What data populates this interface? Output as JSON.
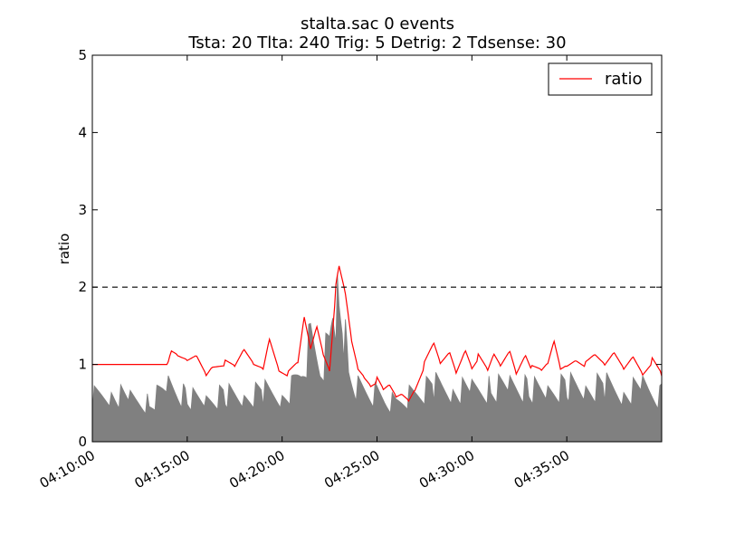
{
  "chart_data": {
    "type": "line",
    "title": "stalta.sac   0 events",
    "subtitle": "Tsta: 20  Tlta: 240  Trig: 5  Detrig: 2  Tdsense: 30",
    "xlabel": "",
    "ylabel": "ratio",
    "xlim": [
      "04:10:00",
      "04:40:00"
    ],
    "ylim": [
      0,
      5
    ],
    "yticks": [
      "0",
      "1",
      "2",
      "3",
      "4",
      "5"
    ],
    "xticks": [
      "04:10:00",
      "04:15:00",
      "04:20:00",
      "04:25:00",
      "04:30:00",
      "04:35:00"
    ],
    "threshold": {
      "value": 2,
      "style": "dashed",
      "color": "#000000"
    },
    "grid": false,
    "legend": {
      "placement": "top-right",
      "entries": [
        "ratio"
      ]
    },
    "colors": {
      "ratio": "#ff0000",
      "envelope": "#808080"
    },
    "series": [
      {
        "name": "ratio",
        "color": "#ff0000",
        "x": [
          "04:10:00",
          "04:14:00",
          "04:14:10",
          "04:14:30",
          "04:15:00",
          "04:15:30",
          "04:16:00",
          "04:16:20",
          "04:17:00",
          "04:17:30",
          "04:18:00",
          "04:18:30",
          "04:19:00",
          "04:19:20",
          "04:19:50",
          "04:20:20",
          "04:20:50",
          "04:21:10",
          "04:21:30",
          "04:21:50",
          "04:22:10",
          "04:22:30",
          "04:22:50",
          "04:23:00",
          "04:23:20",
          "04:23:40",
          "04:24:00",
          "04:24:20",
          "04:24:40",
          "04:25:00",
          "04:25:20",
          "04:25:40",
          "04:26:00",
          "04:26:20",
          "04:26:40",
          "04:27:00",
          "04:27:30",
          "04:28:00",
          "04:28:20",
          "04:28:50",
          "04:29:10",
          "04:29:40",
          "04:30:00",
          "04:30:20",
          "04:30:50",
          "04:31:10",
          "04:31:30",
          "04:32:00",
          "04:32:20",
          "04:32:50",
          "04:33:10",
          "04:33:40",
          "04:34:00",
          "04:34:20",
          "04:34:40",
          "04:35:00",
          "04:35:30",
          "04:36:00",
          "04:36:30",
          "04:37:00",
          "04:37:30",
          "04:38:00",
          "04:38:30",
          "04:39:00",
          "04:39:30",
          "04:40:00"
        ],
        "values": [
          1.0,
          1.0,
          1.15,
          1.1,
          1.05,
          1.12,
          0.88,
          1.0,
          1.02,
          0.95,
          1.18,
          1.0,
          0.95,
          1.35,
          0.95,
          0.88,
          1.0,
          1.6,
          1.2,
          1.5,
          1.15,
          0.95,
          2.0,
          2.25,
          1.9,
          1.3,
          0.95,
          0.85,
          0.75,
          0.8,
          0.65,
          0.72,
          0.58,
          0.62,
          0.55,
          0.7,
          1.0,
          1.25,
          1.0,
          1.15,
          0.9,
          1.2,
          0.98,
          1.1,
          0.9,
          1.12,
          0.98,
          1.18,
          0.9,
          1.15,
          0.95,
          0.9,
          1.0,
          1.3,
          0.95,
          1.0,
          1.08,
          1.0,
          1.1,
          0.98,
          1.15,
          0.95,
          1.12,
          0.9,
          1.05,
          0.85
        ]
      }
    ],
    "envelope": {
      "name": "",
      "color": "#808080",
      "x": [
        "04:10:00",
        "04:11:00",
        "04:12:00",
        "04:13:00",
        "04:14:00",
        "04:15:00",
        "04:16:00",
        "04:17:00",
        "04:18:00",
        "04:19:00",
        "04:20:00",
        "04:20:30",
        "04:21:00",
        "04:21:30",
        "04:22:00",
        "04:22:30",
        "04:22:45",
        "04:23:00",
        "04:23:15",
        "04:23:30",
        "04:24:00",
        "04:24:30",
        "04:25:00",
        "04:25:30",
        "04:26:00",
        "04:26:30",
        "04:27:00",
        "04:28:00",
        "04:29:00",
        "04:30:00",
        "04:31:00",
        "04:32:00",
        "04:33:00",
        "04:34:00",
        "04:35:00",
        "04:36:00",
        "04:37:00",
        "04:38:00",
        "04:39:00",
        "04:40:00"
      ],
      "values": [
        0.75,
        0.85,
        0.7,
        0.65,
        0.95,
        0.75,
        0.7,
        0.8,
        0.75,
        0.85,
        0.8,
        0.9,
        1.2,
        1.7,
        1.3,
        1.6,
        2.4,
        2.2,
        1.9,
        1.2,
        0.9,
        0.85,
        0.8,
        0.7,
        0.65,
        0.75,
        0.8,
        0.95,
        0.9,
        0.85,
        0.9,
        0.95,
        0.9,
        0.85,
        0.95,
        0.9,
        0.95,
        0.85,
        0.9,
        0.75
      ]
    }
  }
}
